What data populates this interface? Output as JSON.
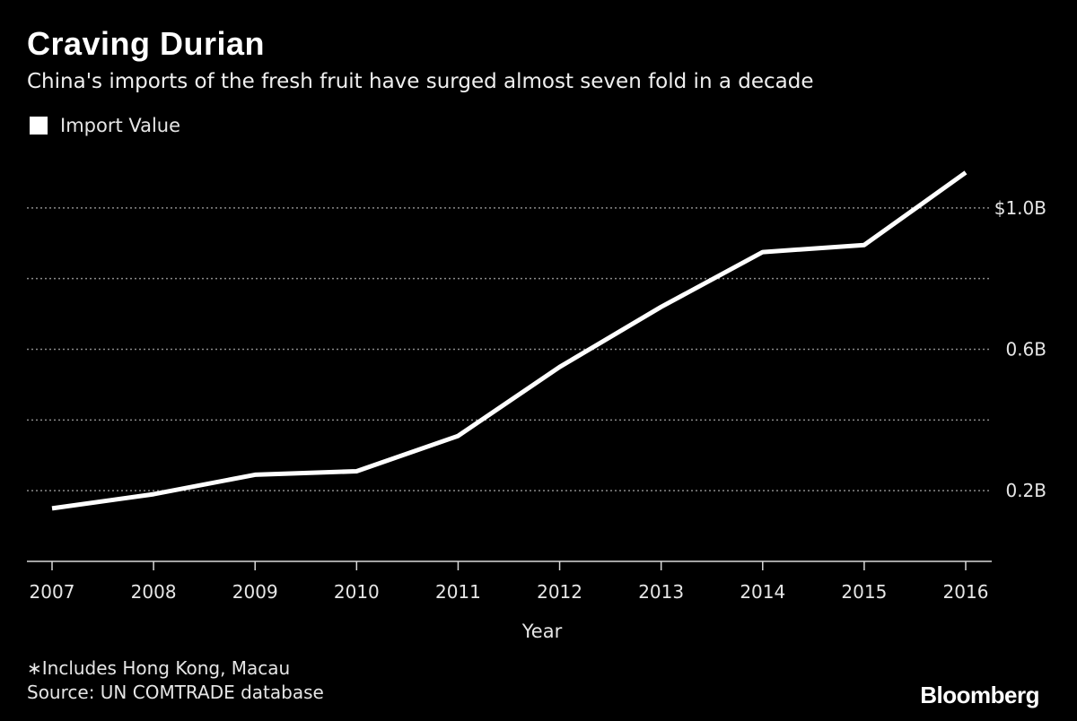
{
  "header": {
    "title": "Craving Durian",
    "subtitle": "China's imports of the fresh fruit have surged almost seven fold in a decade"
  },
  "footer": {
    "footnote": "∗Includes Hong Kong, Macau",
    "source": "Source: UN COMTRADE database",
    "brand": "Bloomberg"
  },
  "chart_data": {
    "type": "line",
    "title": "Craving Durian",
    "subtitle": "China's imports of the fresh fruit have surged almost seven fold in a decade",
    "xlabel": "Year",
    "ylabel": "",
    "x": [
      "2007",
      "2008",
      "2009",
      "2010",
      "2011",
      "2012",
      "2013",
      "2014",
      "2015",
      "2016"
    ],
    "series": [
      {
        "name": "Import Value",
        "color": "#ffffff",
        "values": [
          0.15,
          0.19,
          0.245,
          0.255,
          0.355,
          0.55,
          0.72,
          0.875,
          0.895,
          1.1
        ]
      }
    ],
    "ylim": [
      0,
      1.2
    ],
    "yticks": [
      0.2,
      0.4,
      0.6,
      0.8,
      1.0
    ],
    "ytick_labels": [
      "0.2B",
      "",
      "0.6B",
      "",
      "$1.0B"
    ],
    "y_axis_side": "right",
    "grid": "horizontal dotted",
    "legend": "top-left"
  }
}
